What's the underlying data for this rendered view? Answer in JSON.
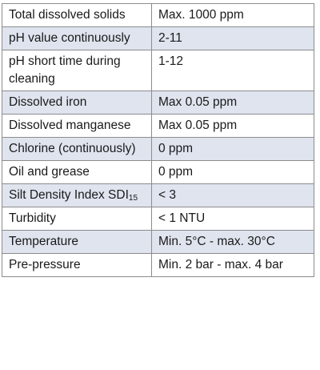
{
  "rows": [
    {
      "param": "Total dissolved solids",
      "value": "Max. 1000 ppm"
    },
    {
      "param": "pH value continuously",
      "value": "2-11"
    },
    {
      "param": "pH short time during cleaning",
      "value": "1-12"
    },
    {
      "param": "Dissolved iron",
      "value": "Max 0.05 ppm"
    },
    {
      "param": "Dissolved manganese",
      "value": "Max 0.05 ppm"
    },
    {
      "param": "Chlorine (continuously)",
      "value": "0 ppm"
    },
    {
      "param": "Oil and grease",
      "value": "0 ppm"
    },
    {
      "param": "Silt Density Index SDI",
      "param_subscript": "15",
      "value": "< 3"
    },
    {
      "param": "Turbidity",
      "value": "< 1 NTU"
    },
    {
      "param": "Temperature",
      "value": "Min. 5°C - max. 30°C"
    },
    {
      "param": "Pre-pressure",
      "value": "Min. 2 bar - max. 4 bar"
    }
  ],
  "colors": {
    "shaded_row": "#dfe4ef",
    "border": "#8c8c8c",
    "text": "#1a1a1a"
  }
}
